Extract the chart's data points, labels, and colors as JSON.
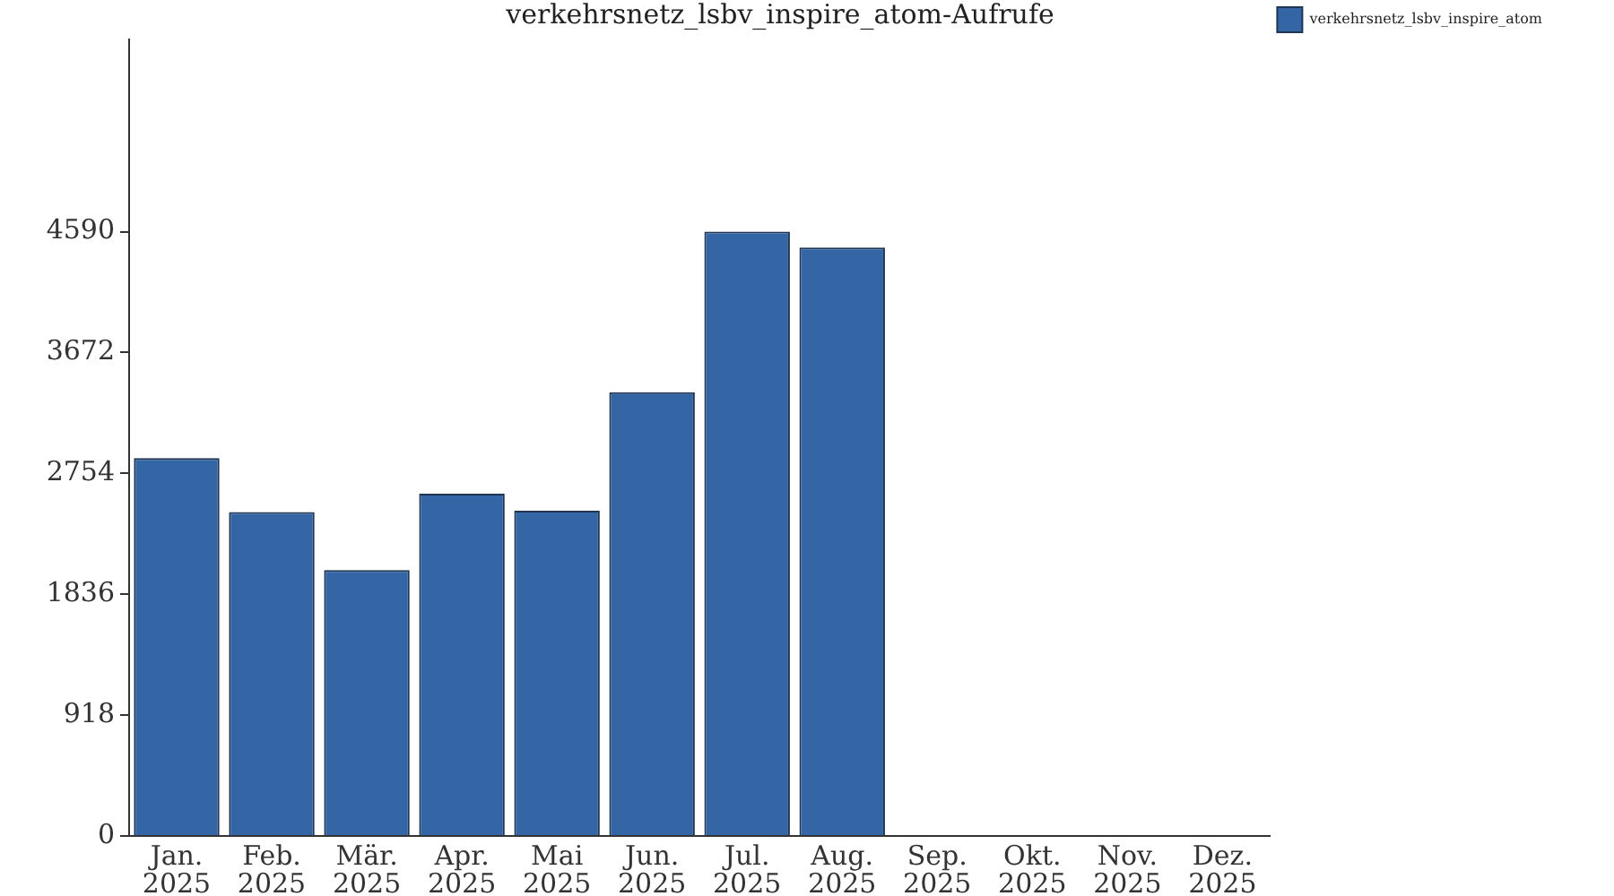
{
  "chart_data": {
    "type": "bar",
    "title": "verkehrsnetz_lsbv_inspire_atom-Aufrufe",
    "categories": [
      "Jan. 2025",
      "Feb. 2025",
      "Mär. 2025",
      "Apr. 2025",
      "Mai 2025",
      "Jun. 2025",
      "Jul. 2025",
      "Aug. 2025",
      "Sep. 2025",
      "Okt. 2025",
      "Nov. 2025",
      "Dez. 2025"
    ],
    "series": [
      {
        "name": "verkehrsnetz_lsbv_inspire_atom",
        "color": "#3465a4",
        "values": [
          2870,
          2460,
          2020,
          2600,
          2470,
          3370,
          4590,
          4470,
          0,
          0,
          0,
          0
        ]
      }
    ],
    "ylim": [
      0,
      6050
    ],
    "yticks": [
      0,
      918,
      1836,
      2754,
      3672,
      4590
    ],
    "grid": false,
    "legend": "top right"
  }
}
